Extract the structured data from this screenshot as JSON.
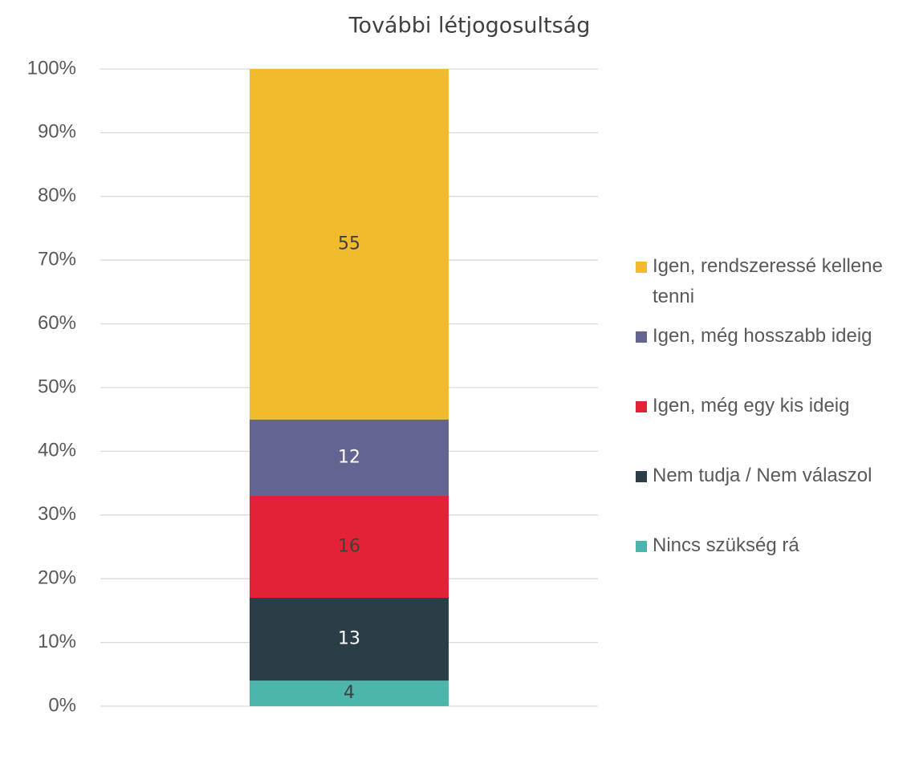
{
  "chart_data": {
    "type": "stacked_bar",
    "title": "További létjogosultság",
    "categories": [
      null
    ],
    "series": [
      {
        "name": "Nincs szükség rá",
        "color": "#4db6ac",
        "values": [
          4
        ]
      },
      {
        "name": "Nem tudja / Nem válaszol",
        "color": "#2b3d47",
        "values": [
          13
        ]
      },
      {
        "name": "Igen, még egy kis ideig",
        "color": "#e32236",
        "values": [
          16
        ]
      },
      {
        "name": "Igen, még hosszabb ideig",
        "color": "#646492",
        "values": [
          12
        ]
      },
      {
        "name": "Igen, rendszeressé kellene tenni",
        "color": "#f0bc2e",
        "values": [
          55
        ]
      }
    ],
    "ylim": [
      0,
      100
    ],
    "yticks": [
      {
        "value": 0,
        "label": "0%"
      },
      {
        "value": 10,
        "label": "10%"
      },
      {
        "value": 20,
        "label": "20%"
      },
      {
        "value": 30,
        "label": "30%"
      },
      {
        "value": 40,
        "label": "40%"
      },
      {
        "value": 50,
        "label": "50%"
      },
      {
        "value": 60,
        "label": "60%"
      },
      {
        "value": 70,
        "label": "70%"
      },
      {
        "value": 80,
        "label": "80%"
      },
      {
        "value": 90,
        "label": "90%"
      },
      {
        "value": 100,
        "label": "100%"
      }
    ],
    "grid": true,
    "legend": "right"
  }
}
